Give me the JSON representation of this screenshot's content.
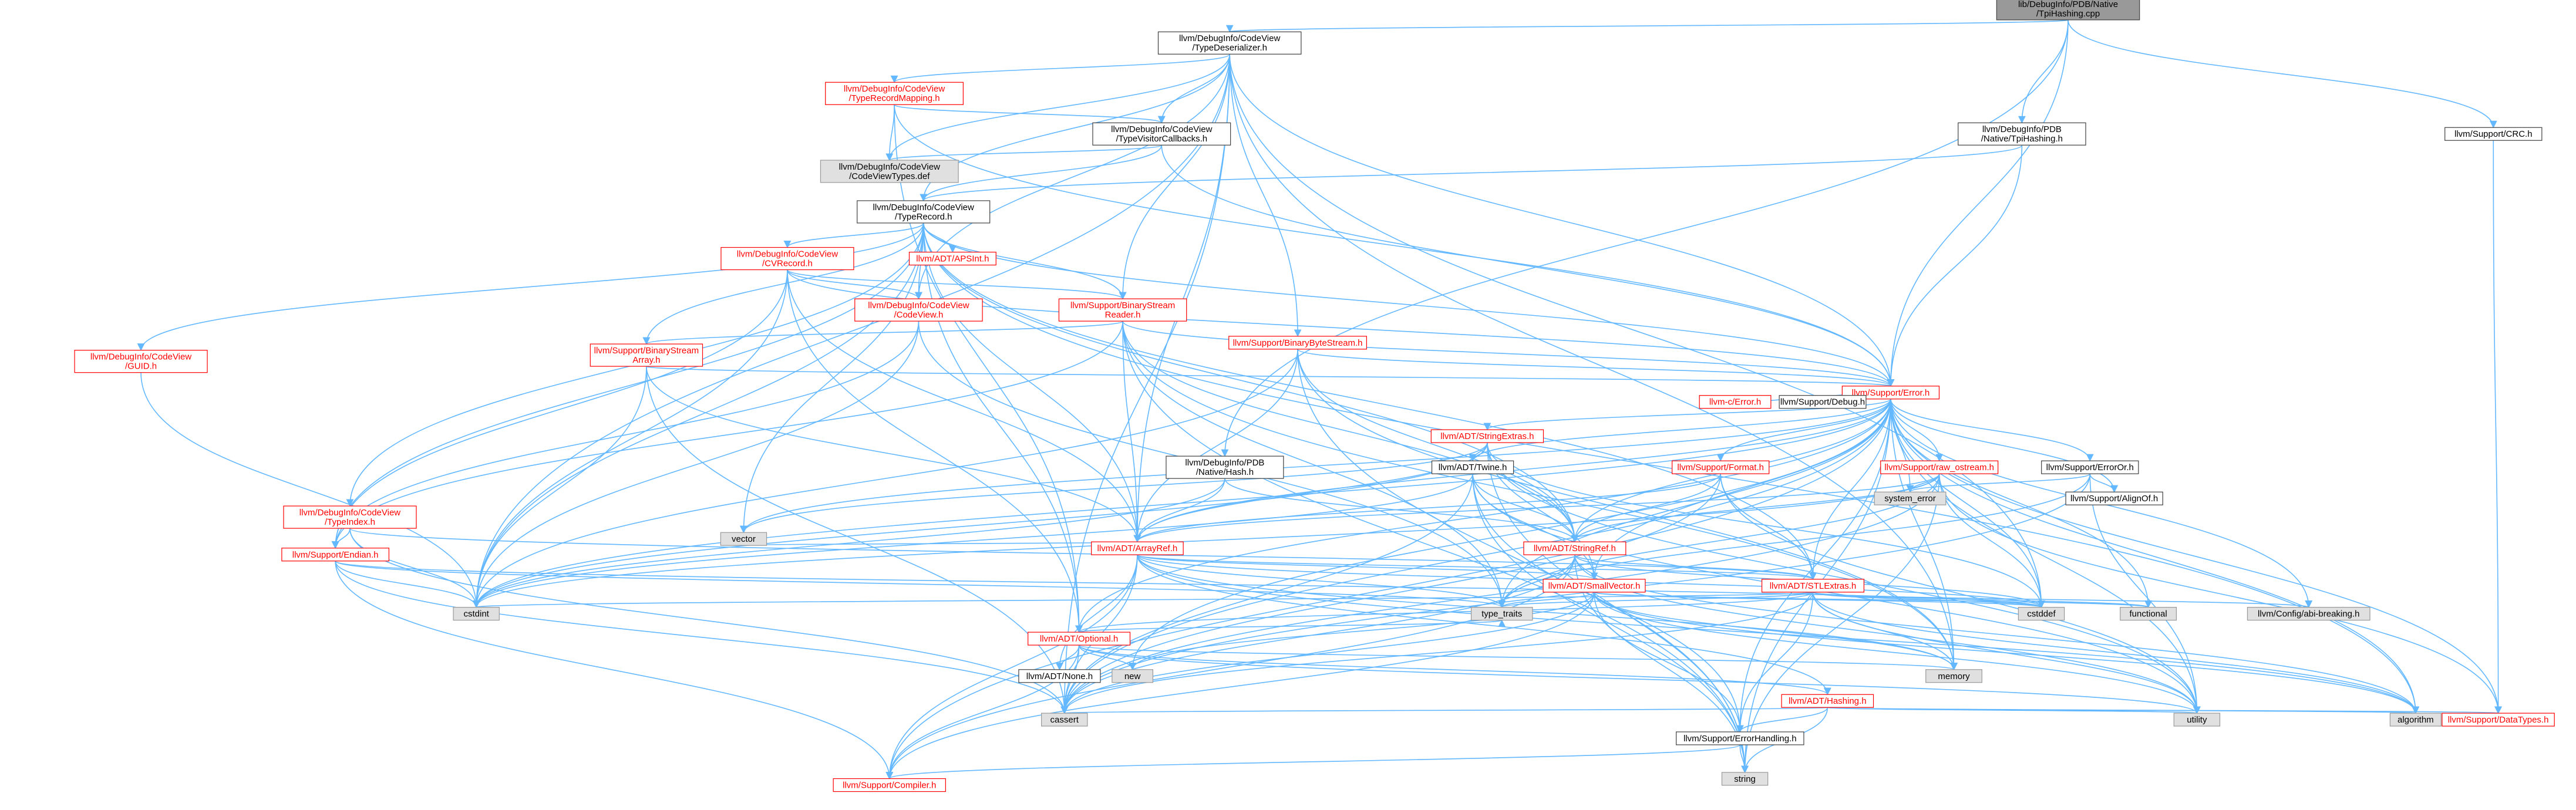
{
  "diagram": {
    "title": "",
    "colors": {
      "edge": "#63b8ff",
      "node_border": "#404040",
      "red_text": "#ff0000",
      "gray_fill": "#e0e0e0",
      "root_fill": "#999999"
    },
    "nodes": [
      {
        "id": "root",
        "lines": [
          "lib/DebugInfo/PDB/Native",
          "/TpiHashing.cpp"
        ],
        "style": "root"
      },
      {
        "id": "tds",
        "lines": [
          "llvm/DebugInfo/CodeView",
          "/TypeDeserializer.h"
        ],
        "style": "white"
      },
      {
        "id": "tpih",
        "lines": [
          "llvm/DebugInfo/PDB",
          "/Native/TpiHashing.h"
        ],
        "style": "white"
      },
      {
        "id": "crc",
        "lines": [
          "llvm/Support/CRC.h"
        ],
        "style": "white"
      },
      {
        "id": "trm",
        "lines": [
          "llvm/DebugInfo/CodeView",
          "/TypeRecordMapping.h"
        ],
        "style": "red"
      },
      {
        "id": "tvc",
        "lines": [
          "llvm/DebugInfo/CodeView",
          "/TypeVisitorCallbacks.h"
        ],
        "style": "white"
      },
      {
        "id": "cvtypes",
        "lines": [
          "llvm/DebugInfo/CodeView",
          "/CodeViewTypes.def"
        ],
        "style": "gray"
      },
      {
        "id": "tr",
        "lines": [
          "llvm/DebugInfo/CodeView",
          "/TypeRecord.h"
        ],
        "style": "white"
      },
      {
        "id": "cvrecord",
        "lines": [
          "llvm/DebugInfo/CodeView",
          "/CVRecord.h"
        ],
        "style": "red"
      },
      {
        "id": "apsint",
        "lines": [
          "llvm/ADT/APSInt.h"
        ],
        "style": "red"
      },
      {
        "id": "codeview",
        "lines": [
          "llvm/DebugInfo/CodeView",
          "/CodeView.h"
        ],
        "style": "red"
      },
      {
        "id": "bsr",
        "lines": [
          "llvm/Support/BinaryStream",
          "Reader.h"
        ],
        "style": "red"
      },
      {
        "id": "bbs",
        "lines": [
          "llvm/Support/BinaryByteStream.h"
        ],
        "style": "red"
      },
      {
        "id": "bsa",
        "lines": [
          "llvm/Support/BinaryStream",
          "Array.h"
        ],
        "style": "red"
      },
      {
        "id": "guid",
        "lines": [
          "llvm/DebugInfo/CodeView",
          "/GUID.h"
        ],
        "style": "red"
      },
      {
        "id": "error",
        "lines": [
          "llvm/Support/Error.h"
        ],
        "style": "red"
      },
      {
        "id": "cerror",
        "lines": [
          "llvm-c/Error.h"
        ],
        "style": "red"
      },
      {
        "id": "debug",
        "lines": [
          "llvm/Support/Debug.h"
        ],
        "style": "white"
      },
      {
        "id": "strext",
        "lines": [
          "llvm/ADT/StringExtras.h"
        ],
        "style": "red"
      },
      {
        "id": "hashh",
        "lines": [
          "llvm/DebugInfo/PDB",
          "/Native/Hash.h"
        ],
        "style": "white"
      },
      {
        "id": "twine",
        "lines": [
          "llvm/ADT/Twine.h"
        ],
        "style": "white"
      },
      {
        "id": "format",
        "lines": [
          "llvm/Support/Format.h"
        ],
        "style": "red"
      },
      {
        "id": "rawos",
        "lines": [
          "llvm/Support/raw_ostream.h"
        ],
        "style": "red"
      },
      {
        "id": "erroror",
        "lines": [
          "llvm/Support/ErrorOr.h"
        ],
        "style": "white"
      },
      {
        "id": "sysErr",
        "lines": [
          "system_error"
        ],
        "style": "gray"
      },
      {
        "id": "alignof",
        "lines": [
          "llvm/Support/AlignOf.h"
        ],
        "style": "white"
      },
      {
        "id": "typeindex",
        "lines": [
          "llvm/DebugInfo/CodeView",
          "/TypeIndex.h"
        ],
        "style": "red"
      },
      {
        "id": "endian",
        "lines": [
          "llvm/Support/Endian.h"
        ],
        "style": "red"
      },
      {
        "id": "vector",
        "lines": [
          "vector"
        ],
        "style": "gray"
      },
      {
        "id": "arrayref",
        "lines": [
          "llvm/ADT/ArrayRef.h"
        ],
        "style": "red"
      },
      {
        "id": "stringref",
        "lines": [
          "llvm/ADT/StringRef.h"
        ],
        "style": "red"
      },
      {
        "id": "smallvec",
        "lines": [
          "llvm/ADT/SmallVector.h"
        ],
        "style": "red"
      },
      {
        "id": "stlextras",
        "lines": [
          "llvm/ADT/STLExtras.h"
        ],
        "style": "red"
      },
      {
        "id": "cstdint",
        "lines": [
          "cstdint"
        ],
        "style": "gray"
      },
      {
        "id": "typetraits",
        "lines": [
          "type_traits"
        ],
        "style": "gray"
      },
      {
        "id": "cstddef",
        "lines": [
          "cstddef"
        ],
        "style": "gray"
      },
      {
        "id": "functional",
        "lines": [
          "functional"
        ],
        "style": "gray"
      },
      {
        "id": "abibreak",
        "lines": [
          "llvm/Config/abi-breaking.h"
        ],
        "style": "gray"
      },
      {
        "id": "optional",
        "lines": [
          "llvm/ADT/Optional.h"
        ],
        "style": "red"
      },
      {
        "id": "none",
        "lines": [
          "llvm/ADT/None.h"
        ],
        "style": "white"
      },
      {
        "id": "new",
        "lines": [
          "new"
        ],
        "style": "gray"
      },
      {
        "id": "memory",
        "lines": [
          "memory"
        ],
        "style": "gray"
      },
      {
        "id": "hashing",
        "lines": [
          "llvm/ADT/Hashing.h"
        ],
        "style": "red"
      },
      {
        "id": "cassert",
        "lines": [
          "cassert"
        ],
        "style": "gray"
      },
      {
        "id": "utility",
        "lines": [
          "utility"
        ],
        "style": "gray"
      },
      {
        "id": "algorithm",
        "lines": [
          "algorithm"
        ],
        "style": "gray"
      },
      {
        "id": "datatypes",
        "lines": [
          "llvm/Support/DataTypes.h"
        ],
        "style": "red"
      },
      {
        "id": "errhandling",
        "lines": [
          "llvm/Support/ErrorHandling.h"
        ],
        "style": "white"
      },
      {
        "id": "string",
        "lines": [
          "string"
        ],
        "style": "gray"
      },
      {
        "id": "compiler",
        "lines": [
          "llvm/Support/Compiler.h"
        ],
        "style": "red"
      }
    ],
    "edges": [
      [
        "root",
        "tds"
      ],
      [
        "root",
        "tpih"
      ],
      [
        "root",
        "crc"
      ],
      [
        "root",
        "error"
      ],
      [
        "root",
        "hashh"
      ],
      [
        "crc",
        "datatypes"
      ],
      [
        "tpih",
        "tr"
      ],
      [
        "tpih",
        "error"
      ],
      [
        "tds",
        "trm"
      ],
      [
        "tds",
        "tvc"
      ],
      [
        "tds",
        "cvtypes"
      ],
      [
        "tds",
        "tr"
      ],
      [
        "tds",
        "codeview"
      ],
      [
        "tds",
        "bsr"
      ],
      [
        "tds",
        "bbs"
      ],
      [
        "tds",
        "error"
      ],
      [
        "tds",
        "arrayref"
      ],
      [
        "tds",
        "cassert"
      ],
      [
        "tds",
        "cstdint"
      ],
      [
        "tds",
        "memory"
      ],
      [
        "tds",
        "cstddef"
      ],
      [
        "trm",
        "tvc"
      ],
      [
        "trm",
        "cvtypes"
      ],
      [
        "trm",
        "optional"
      ],
      [
        "trm",
        "error"
      ],
      [
        "tvc",
        "tr"
      ],
      [
        "tvc",
        "cvtypes"
      ],
      [
        "tvc",
        "error"
      ],
      [
        "tr",
        "cvrecord"
      ],
      [
        "tr",
        "apsint"
      ],
      [
        "tr",
        "codeview"
      ],
      [
        "tr",
        "bsr"
      ],
      [
        "tr",
        "bsa"
      ],
      [
        "tr",
        "guid"
      ],
      [
        "tr",
        "typeindex"
      ],
      [
        "tr",
        "endian"
      ],
      [
        "tr",
        "arrayref"
      ],
      [
        "tr",
        "stringref"
      ],
      [
        "tr",
        "optional"
      ],
      [
        "tr",
        "cstdint"
      ],
      [
        "tr",
        "vector"
      ],
      [
        "tr",
        "algorithm"
      ],
      [
        "tr",
        "stlextras"
      ],
      [
        "tr",
        "error"
      ],
      [
        "cvrecord",
        "codeview"
      ],
      [
        "cvrecord",
        "bsr"
      ],
      [
        "cvrecord",
        "arrayref"
      ],
      [
        "cvrecord",
        "endian"
      ],
      [
        "cvrecord",
        "optional"
      ],
      [
        "cvrecord",
        "cstdint"
      ],
      [
        "cvrecord",
        "error"
      ],
      [
        "codeview",
        "endian"
      ],
      [
        "codeview",
        "cstdint"
      ],
      [
        "codeview",
        "typetraits"
      ],
      [
        "bsr",
        "bsa"
      ],
      [
        "bsr",
        "arrayref"
      ],
      [
        "bsr",
        "stringref"
      ],
      [
        "bsr",
        "error"
      ],
      [
        "bsr",
        "endian"
      ],
      [
        "bsr",
        "typetraits"
      ],
      [
        "bsr",
        "string"
      ],
      [
        "bsr",
        "memory"
      ],
      [
        "bbs",
        "arrayref"
      ],
      [
        "bbs",
        "stringref"
      ],
      [
        "bbs",
        "error"
      ],
      [
        "bbs",
        "memory"
      ],
      [
        "bbs",
        "cstdint"
      ],
      [
        "bbs",
        "string"
      ],
      [
        "bsa",
        "arrayref"
      ],
      [
        "bsa",
        "error"
      ],
      [
        "bsa",
        "cassert"
      ],
      [
        "bsa",
        "cstdint"
      ],
      [
        "guid",
        "cstdint"
      ],
      [
        "typeindex",
        "endian"
      ],
      [
        "typeindex",
        "cassert"
      ],
      [
        "typeindex",
        "cstdint"
      ],
      [
        "typeindex",
        "stlextras"
      ],
      [
        "endian",
        "compiler"
      ],
      [
        "endian",
        "cassert"
      ],
      [
        "endian",
        "cstdint"
      ],
      [
        "endian",
        "typetraits"
      ],
      [
        "endian",
        "cstddef"
      ],
      [
        "error",
        "cerror"
      ],
      [
        "error",
        "debug"
      ],
      [
        "error",
        "strext"
      ],
      [
        "error",
        "twine"
      ],
      [
        "error",
        "format"
      ],
      [
        "error",
        "rawos"
      ],
      [
        "error",
        "erroror"
      ],
      [
        "error",
        "sysErr"
      ],
      [
        "error",
        "alignof"
      ],
      [
        "error",
        "abibreak"
      ],
      [
        "error",
        "stlextras"
      ],
      [
        "error",
        "smallvec"
      ],
      [
        "error",
        "compiler"
      ],
      [
        "error",
        "errhandling"
      ],
      [
        "error",
        "algorithm"
      ],
      [
        "error",
        "cassert"
      ],
      [
        "error",
        "cstdint"
      ],
      [
        "error",
        "functional"
      ],
      [
        "error",
        "memory"
      ],
      [
        "error",
        "new"
      ],
      [
        "error",
        "string"
      ],
      [
        "error",
        "typetraits"
      ],
      [
        "error",
        "utility"
      ],
      [
        "error",
        "vector"
      ],
      [
        "error",
        "optional"
      ],
      [
        "error",
        "stringref"
      ],
      [
        "error",
        "arrayref"
      ],
      [
        "error",
        "cstddef"
      ],
      [
        "error",
        "datatypes"
      ],
      [
        "strext",
        "arrayref"
      ],
      [
        "strext",
        "smallvec"
      ],
      [
        "strext",
        "stringref"
      ],
      [
        "strext",
        "twine"
      ],
      [
        "strext",
        "cstdint"
      ],
      [
        "strext",
        "string"
      ],
      [
        "strext",
        "utility"
      ],
      [
        "strext",
        "iterator"
      ],
      [
        "strext",
        "cstddef"
      ],
      [
        "strext",
        "vector"
      ],
      [
        "hashh",
        "arrayref"
      ],
      [
        "hashh",
        "stringref"
      ],
      [
        "hashh",
        "cstdint"
      ],
      [
        "twine",
        "smallvec"
      ],
      [
        "twine",
        "stringref"
      ],
      [
        "twine",
        "errhandling"
      ],
      [
        "twine",
        "cassert"
      ],
      [
        "twine",
        "cstdint"
      ],
      [
        "twine",
        "string"
      ],
      [
        "twine",
        "utility"
      ],
      [
        "format",
        "arrayref"
      ],
      [
        "format",
        "stringref"
      ],
      [
        "format",
        "stlextras"
      ],
      [
        "format",
        "cassert"
      ],
      [
        "format",
        "cstdio"
      ],
      [
        "format",
        "tuple"
      ],
      [
        "format",
        "utility"
      ],
      [
        "rawos",
        "arrayref"
      ],
      [
        "rawos",
        "stringref"
      ],
      [
        "rawos",
        "datatypes"
      ],
      [
        "rawos",
        "cassert"
      ],
      [
        "rawos",
        "cstddef"
      ],
      [
        "rawos",
        "cstdint"
      ],
      [
        "rawos",
        "string"
      ],
      [
        "rawos",
        "sysErr"
      ],
      [
        "rawos",
        "typetraits"
      ],
      [
        "erroror",
        "alignof"
      ],
      [
        "erroror",
        "cassert"
      ],
      [
        "erroror",
        "sysErr"
      ],
      [
        "erroror",
        "typetraits"
      ],
      [
        "erroror",
        "utility"
      ],
      [
        "arrayref",
        "hashing"
      ],
      [
        "arrayref",
        "none"
      ],
      [
        "arrayref",
        "smallvec"
      ],
      [
        "arrayref",
        "stlextras"
      ],
      [
        "arrayref",
        "compiler"
      ],
      [
        "arrayref",
        "algorithm"
      ],
      [
        "arrayref",
        "array"
      ],
      [
        "arrayref",
        "cassert"
      ],
      [
        "arrayref",
        "cstddef"
      ],
      [
        "arrayref",
        "initializer_list"
      ],
      [
        "arrayref",
        "iterator"
      ],
      [
        "arrayref",
        "memory"
      ],
      [
        "arrayref",
        "typetraits"
      ],
      [
        "arrayref",
        "vector"
      ],
      [
        "stringref",
        "stlextras"
      ],
      [
        "stringref",
        "compiler"
      ],
      [
        "stringref",
        "algorithm"
      ],
      [
        "stringref",
        "cassert"
      ],
      [
        "stringref",
        "cstddef"
      ],
      [
        "stringref",
        "cstring"
      ],
      [
        "stringref",
        "limits"
      ],
      [
        "stringref",
        "string"
      ],
      [
        "stringref",
        "typetraits"
      ],
      [
        "stringref",
        "utility"
      ],
      [
        "smallvec",
        "compiler"
      ],
      [
        "smallvec",
        "errhandling"
      ],
      [
        "smallvec",
        "algorithm"
      ],
      [
        "smallvec",
        "cassert"
      ],
      [
        "smallvec",
        "cstddef"
      ],
      [
        "smallvec",
        "cstdlib"
      ],
      [
        "smallvec",
        "cstring"
      ],
      [
        "smallvec",
        "functional"
      ],
      [
        "smallvec",
        "initializer_list"
      ],
      [
        "smallvec",
        "iterator"
      ],
      [
        "smallvec",
        "limits"
      ],
      [
        "smallvec",
        "memory"
      ],
      [
        "smallvec",
        "new"
      ],
      [
        "smallvec",
        "typetraits"
      ],
      [
        "smallvec",
        "utility"
      ],
      [
        "stlextras",
        "abibreak"
      ],
      [
        "stlextras",
        "optional"
      ],
      [
        "stlextras",
        "errhandling"
      ],
      [
        "stlextras",
        "algorithm"
      ],
      [
        "stlextras",
        "cassert"
      ],
      [
        "stlextras",
        "cstddef"
      ],
      [
        "stlextras",
        "cstdint"
      ],
      [
        "stlextras",
        "cstdlib"
      ],
      [
        "stlextras",
        "functional"
      ],
      [
        "stlextras",
        "initializer_list"
      ],
      [
        "stlextras",
        "iterator"
      ],
      [
        "stlextras",
        "limits"
      ],
      [
        "stlextras",
        "memory"
      ],
      [
        "stlextras",
        "tuple"
      ],
      [
        "stlextras",
        "typetraits"
      ],
      [
        "stlextras",
        "utility"
      ],
      [
        "optional",
        "none"
      ],
      [
        "optional",
        "hashing"
      ],
      [
        "optional",
        "compiler"
      ],
      [
        "optional",
        "typetraits"
      ],
      [
        "optional",
        "cassert"
      ],
      [
        "optional",
        "memory"
      ],
      [
        "optional",
        "new"
      ],
      [
        "optional",
        "utility"
      ],
      [
        "hashing",
        "datatypes"
      ],
      [
        "hashing",
        "errhandling"
      ],
      [
        "hashing",
        "algorithm"
      ],
      [
        "hashing",
        "cassert"
      ],
      [
        "hashing",
        "cstring"
      ],
      [
        "hashing",
        "string"
      ],
      [
        "hashing",
        "tuple"
      ],
      [
        "hashing",
        "utility"
      ],
      [
        "errhandling",
        "compiler"
      ],
      [
        "errhandling",
        "string"
      ]
    ]
  }
}
